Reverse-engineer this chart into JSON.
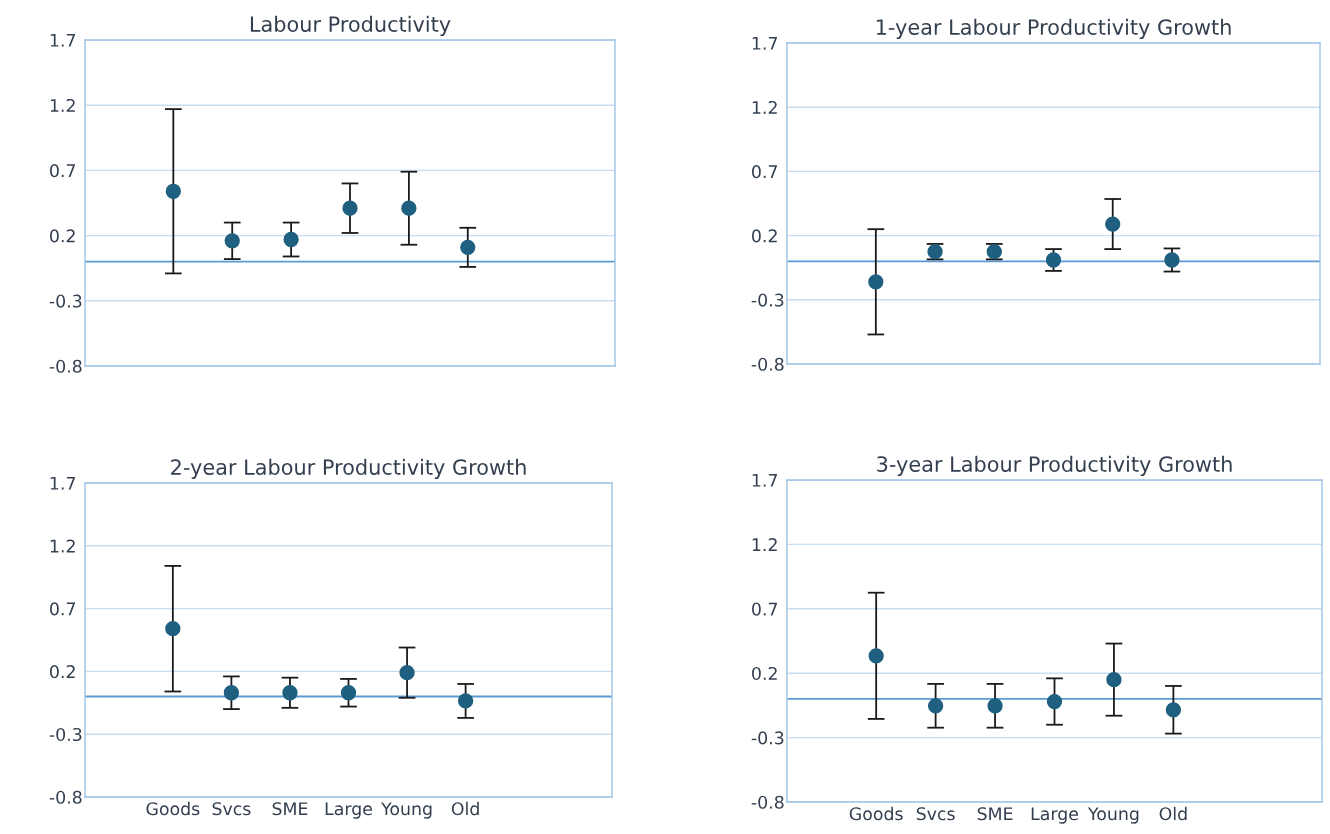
{
  "chart_data": [
    {
      "type": "scatter",
      "title": "Labour Productivity",
      "categories": [
        null,
        null,
        null,
        null,
        null,
        null,
        null,
        null,
        null
      ],
      "marker": "circle",
      "grid": "y",
      "series": [
        {
          "color": "#1f5f7f",
          "values": [
            null,
            0.54,
            0.16,
            0.17,
            0.41,
            0.41,
            0.11,
            null,
            null
          ],
          "errors": [
            null,
            0.63,
            0.14,
            0.13,
            0.19,
            0.28,
            0.15,
            null,
            null
          ]
        }
      ],
      "ylim": [
        -0.8,
        1.7
      ],
      "yticks": [
        -0.8,
        -0.3,
        0.2,
        0.7,
        1.2,
        1.7
      ],
      "ref_lines": [
        {
          "axis": "y",
          "value": 0,
          "color": "#5b9bd5"
        }
      ]
    },
    {
      "type": "scatter",
      "title": "1-year Labour Productivity Growth",
      "categories": [
        null,
        null,
        null,
        null,
        null,
        null,
        null,
        null,
        null
      ],
      "marker": "circle",
      "grid": "y",
      "series": [
        {
          "color": "#1f5f7f",
          "values": [
            null,
            -0.16,
            0.075,
            0.075,
            0.01,
            0.29,
            0.01,
            null,
            null
          ],
          "errors": [
            null,
            0.41,
            0.06,
            0.06,
            0.085,
            0.195,
            0.09,
            null,
            null
          ]
        }
      ],
      "ylim": [
        -0.8,
        1.7
      ],
      "yticks": [
        -0.8,
        -0.3,
        0.2,
        0.7,
        1.2,
        1.7
      ],
      "ref_lines": [
        {
          "axis": "y",
          "value": 0,
          "color": "#5b9bd5"
        }
      ]
    },
    {
      "type": "scatter",
      "title": "2-year Labour Productivity Growth",
      "categories": [
        null,
        "Goods",
        "Svcs",
        "SME",
        "Large",
        "Young",
        "Old",
        null,
        null
      ],
      "marker": "circle",
      "grid": "y",
      "series": [
        {
          "color": "#1f5f7f",
          "values": [
            null,
            0.54,
            0.03,
            0.03,
            0.03,
            0.19,
            -0.035,
            null,
            null
          ],
          "errors": [
            null,
            0.5,
            0.13,
            0.12,
            0.11,
            0.2,
            0.135,
            null,
            null
          ]
        }
      ],
      "ylim": [
        -0.8,
        1.7
      ],
      "yticks": [
        -0.8,
        -0.3,
        0.2,
        0.7,
        1.2,
        1.7
      ],
      "ref_lines": [
        {
          "axis": "y",
          "value": 0,
          "color": "#5b9bd5"
        }
      ]
    },
    {
      "type": "scatter",
      "title": "3-year Labour Productivity Growth",
      "categories": [
        null,
        "Goods",
        "Svcs",
        "SME",
        "Large",
        "Young",
        "Old",
        null,
        null
      ],
      "marker": "circle",
      "grid": "y",
      "series": [
        {
          "color": "#1f5f7f",
          "values": [
            null,
            0.335,
            -0.053,
            -0.053,
            -0.02,
            0.15,
            -0.084,
            null,
            null
          ],
          "errors": [
            null,
            0.49,
            0.17,
            0.17,
            0.18,
            0.28,
            0.185,
            null,
            null
          ]
        }
      ],
      "ylim": [
        -0.8,
        1.7
      ],
      "yticks": [
        -0.8,
        -0.3,
        0.2,
        0.7,
        1.2,
        1.7
      ],
      "ref_lines": [
        {
          "axis": "y",
          "value": 0,
          "color": "#5b9bd5"
        }
      ]
    }
  ]
}
